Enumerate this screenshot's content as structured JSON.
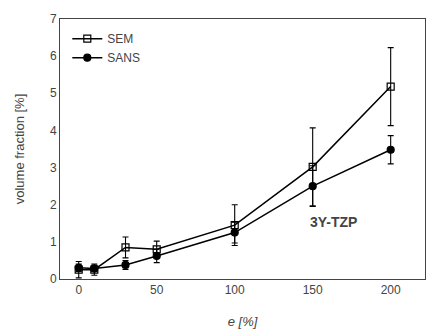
{
  "chart_data": {
    "type": "line",
    "xlabel": "e [%]",
    "ylabel": "volume fraction [%]",
    "annotation": "3Y-TZP",
    "x": [
      0,
      10,
      30,
      50,
      100,
      150,
      200
    ],
    "series": [
      {
        "name": "SEM",
        "color": "#000000",
        "marker": "square-open",
        "values": [
          0.25,
          0.25,
          0.85,
          0.8,
          1.45,
          3.02,
          5.18
        ],
        "errors": [
          0.22,
          0.15,
          0.28,
          0.22,
          0.55,
          1.05,
          1.05
        ]
      },
      {
        "name": "SANS",
        "color": "#000000",
        "marker": "circle",
        "values": [
          0.3,
          0.28,
          0.38,
          0.62,
          1.25,
          2.5,
          3.48
        ],
        "errors": [
          0.1,
          0.08,
          0.12,
          0.18,
          0.28,
          0.55,
          0.38
        ]
      }
    ],
    "xlim": [
      -12,
      222
    ],
    "xticks": [
      0,
      50,
      100,
      150,
      200
    ],
    "ylim": [
      0,
      7
    ],
    "yticks": [
      0,
      1,
      2,
      3,
      4,
      5,
      6,
      7
    ],
    "grid": false,
    "legend": "upper left"
  }
}
